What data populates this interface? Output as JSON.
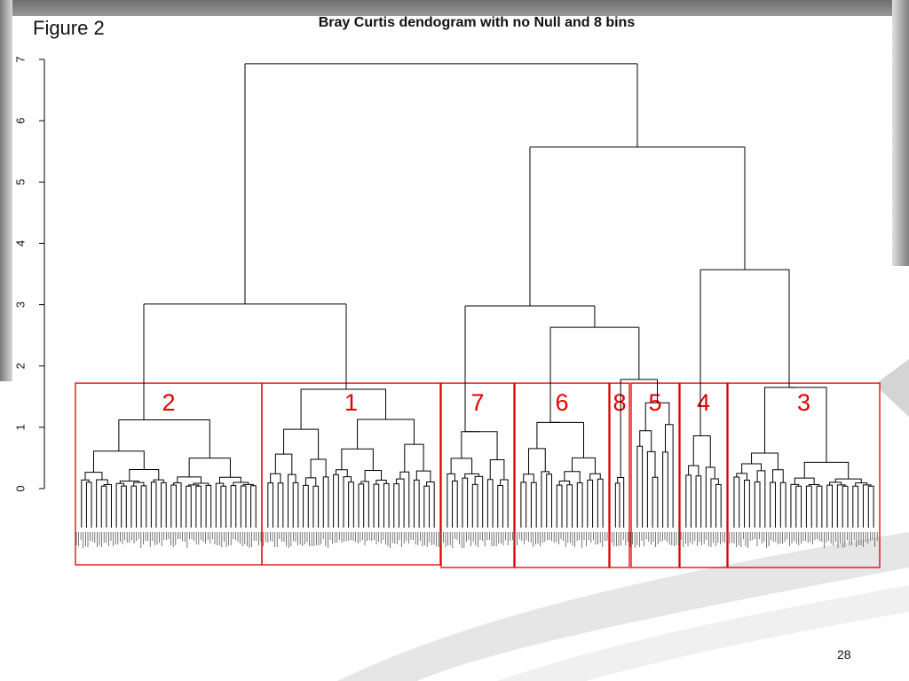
{
  "slide": {
    "figure_label": "Figure 2",
    "page_number": "28"
  },
  "chart_data": {
    "type": "dendrogram",
    "title": "Bray Curtis dendogram with no Null and 8 bins",
    "xlabel": "",
    "ylabel": "",
    "ylim": [
      0,
      7
    ],
    "yticks": [
      "0",
      "1",
      "2",
      "3",
      "4",
      "5",
      "6",
      "7"
    ],
    "cut_height": 1.72,
    "root_height": 6.93,
    "clusters": [
      {
        "label": "2",
        "order": 1
      },
      {
        "label": "1",
        "order": 2
      },
      {
        "label": "7",
        "order": 3
      },
      {
        "label": "6",
        "order": 4
      },
      {
        "label": "8",
        "order": 5
      },
      {
        "label": "5",
        "order": 6
      },
      {
        "label": "4",
        "order": 7
      },
      {
        "label": "3",
        "order": 8
      }
    ],
    "merges": [
      {
        "join": [
          "2",
          "1"
        ],
        "height": 3.01
      },
      {
        "join": [
          "6",
          "8"
        ],
        "height": 2.63
      },
      {
        "join": [
          "7",
          "6+8"
        ],
        "height": 2.98
      },
      {
        "join": [
          "4",
          "3"
        ],
        "height": 3.57
      },
      {
        "join": [
          "7+6+8",
          "4+3"
        ],
        "height": 5.57
      },
      {
        "join": [
          "2+1",
          "7+6+8+4+3"
        ],
        "height": 6.93
      }
    ],
    "box_color": "#e00000",
    "line_color": "#000000"
  }
}
